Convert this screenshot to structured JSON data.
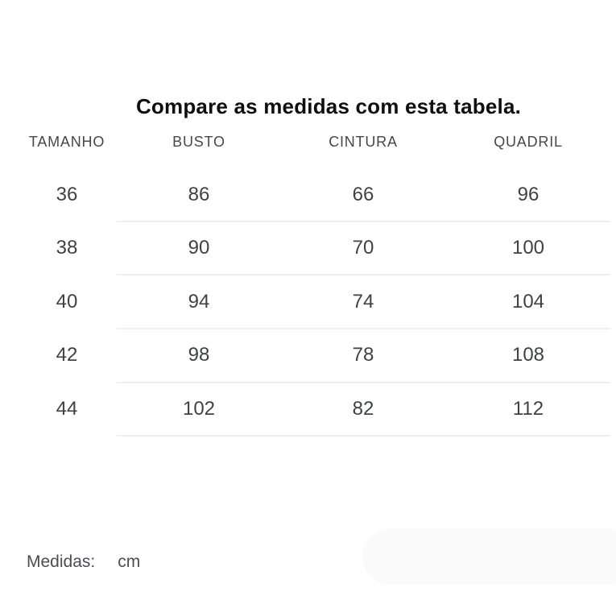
{
  "title": "Compare as medidas com esta tabela.",
  "table": {
    "headers": [
      "TAMANHO",
      "BUSTO",
      "CINTURA",
      "QUADRIL"
    ],
    "rows": [
      [
        "36",
        "86",
        "66",
        "96"
      ],
      [
        "38",
        "90",
        "70",
        "100"
      ],
      [
        "40",
        "94",
        "74",
        "104"
      ],
      [
        "42",
        "98",
        "78",
        "108"
      ],
      [
        "44",
        "102",
        "82",
        "112"
      ]
    ]
  },
  "footer": {
    "label": "Medidas:",
    "value": "cm"
  },
  "colors": {
    "background": "#ffffff",
    "title_text": "#0f0f0f",
    "header_text": "#44484c",
    "cell_text": "#3f4245",
    "divider": "#efefef",
    "footer_text": "#4a4e52",
    "placeholder": "#fafafa"
  }
}
